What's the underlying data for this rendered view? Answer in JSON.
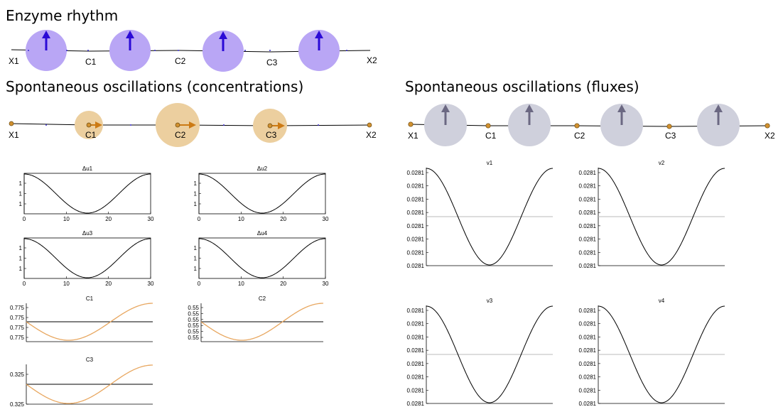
{
  "colors": {
    "enzyme_circle": "#b9a6f5",
    "enzyme_arrow": "#2b0ad6",
    "conc_circle": "#eccf9f",
    "conc_arrow": "#cc7a14",
    "node": "#d19130",
    "flux_circle": "#cfd0dc",
    "flux_arrow": "#6b6882",
    "conc_curve": "#e8a760",
    "ref_line": "#bbbbbb"
  },
  "enzyme": {
    "title": "Enzyme rhythm",
    "nodes": [
      "X1",
      "C1",
      "C2",
      "C3",
      "X2"
    ]
  },
  "concentrations": {
    "title": "Spontaneous oscillations (concentrations)",
    "nodes": [
      "X1",
      "C1",
      "C2",
      "C3",
      "X2"
    ]
  },
  "fluxes": {
    "title": "Spontaneous oscillations (fluxes)",
    "nodes": [
      "X1",
      "C1",
      "C2",
      "C3",
      "X2"
    ]
  },
  "du_plots": [
    {
      "title": "Δu1",
      "yticks": [
        "1",
        "1",
        "1"
      ],
      "xticks": [
        "0",
        "10",
        "20",
        "30"
      ]
    },
    {
      "title": "Δu2",
      "yticks": [
        "1",
        "1",
        "1"
      ],
      "xticks": [
        "0",
        "10",
        "20",
        "30"
      ]
    },
    {
      "title": "Δu3",
      "yticks": [
        "1",
        "1",
        "1"
      ],
      "xticks": [
        "0",
        "10",
        "20",
        "30"
      ]
    },
    {
      "title": "Δu4",
      "yticks": [
        "1",
        "1",
        "1"
      ],
      "xticks": [
        "0",
        "10",
        "20",
        "30"
      ]
    }
  ],
  "c_plots": [
    {
      "title": "C1",
      "yticks": [
        "0.775",
        "0.775",
        "0.775",
        "0.775"
      ]
    },
    {
      "title": "C2",
      "yticks": [
        "0.55",
        "0.55",
        "0.55",
        "0.55",
        "0.55",
        "0.55"
      ]
    },
    {
      "title": "C3",
      "yticks": [
        "0.325",
        "0.325"
      ]
    }
  ],
  "v_plots": [
    {
      "title": "v1",
      "yticks": [
        "0.0281",
        "0.0281",
        "0.0281",
        "0.0281",
        "0.0281",
        "0.0281",
        "0.0281",
        "0.0281"
      ]
    },
    {
      "title": "v2",
      "yticks": [
        "0.0281",
        "0.0281",
        "0.0281",
        "0.0281",
        "0.0281",
        "0.0281",
        "0.0281",
        "0.0281"
      ]
    },
    {
      "title": "v3",
      "yticks": [
        "0.0281",
        "0.0281",
        "0.0281",
        "0.0281",
        "0.0281",
        "0.0281",
        "0.0281",
        "0.0281"
      ]
    },
    {
      "title": "v4",
      "yticks": [
        "0.0281",
        "0.0281",
        "0.0281",
        "0.0281",
        "0.0281",
        "0.0281",
        "0.0281",
        "0.0281"
      ]
    }
  ]
}
